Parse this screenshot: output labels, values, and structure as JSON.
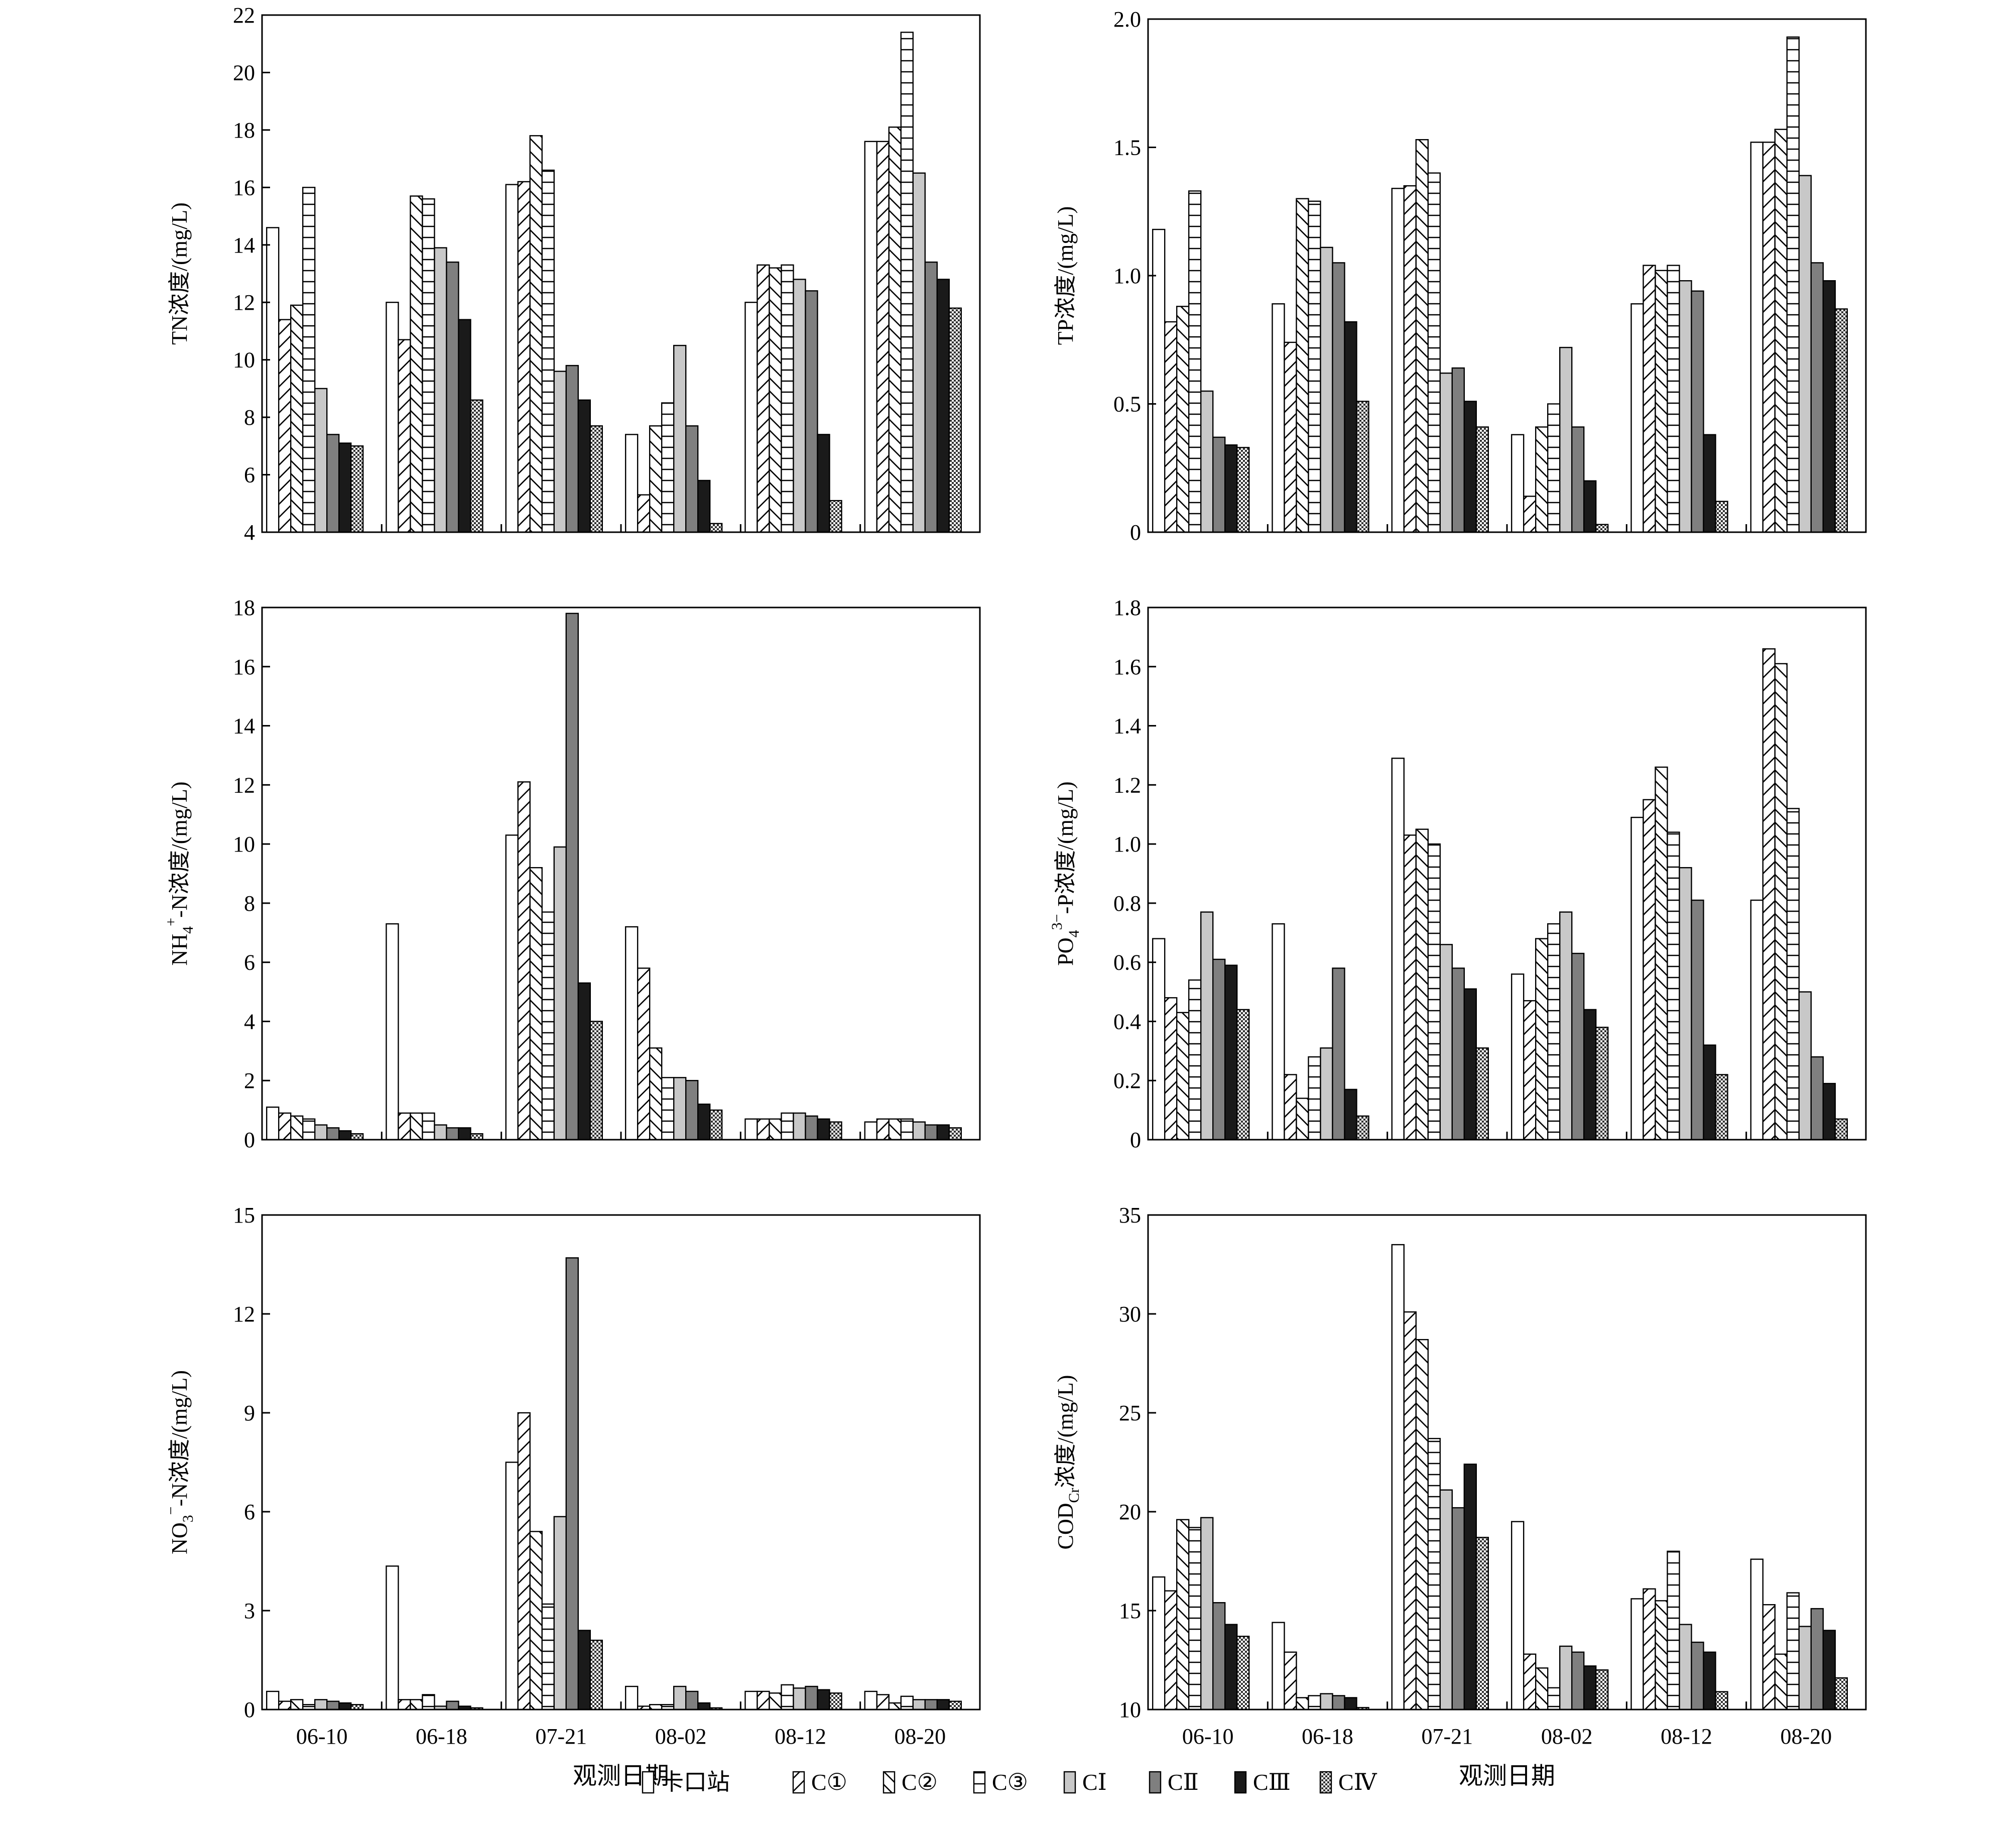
{
  "colors": {
    "ink": "#000000",
    "light_gray": "#c8c8c8",
    "mid_gray": "#7f7f7f",
    "black": "#1a1a1a"
  },
  "legend": {
    "items": [
      {
        "label": "卡口站",
        "pattern": "white"
      },
      {
        "label": "C①",
        "pattern": "diag-right"
      },
      {
        "label": "C②",
        "pattern": "diag-left"
      },
      {
        "label": "C③",
        "pattern": "horizontal"
      },
      {
        "label": "CⅠ",
        "pattern": "light-gray"
      },
      {
        "label": "CⅡ",
        "pattern": "mid-gray"
      },
      {
        "label": "CⅢ",
        "pattern": "black"
      },
      {
        "label": "CⅣ",
        "pattern": "checker"
      }
    ]
  },
  "chart_data": [
    {
      "type": "bar",
      "ylabel": "TN浓度/(mg/L)",
      "xlabel": "",
      "categories": [
        "06-10",
        "06-18",
        "07-21",
        "08-02",
        "08-12",
        "08-20"
      ],
      "ylim": [
        4,
        22
      ],
      "yticks": [
        4,
        6,
        8,
        10,
        12,
        14,
        16,
        18,
        20,
        22
      ],
      "series": [
        {
          "name": "卡口站",
          "values": [
            14.6,
            12.0,
            16.1,
            7.4,
            12.0,
            17.6
          ]
        },
        {
          "name": "C①",
          "values": [
            11.4,
            10.7,
            16.2,
            5.3,
            13.3,
            17.6
          ]
        },
        {
          "name": "C②",
          "values": [
            11.9,
            15.7,
            17.8,
            7.7,
            13.2,
            18.1
          ]
        },
        {
          "name": "C③",
          "values": [
            16.0,
            15.6,
            16.6,
            8.5,
            13.3,
            21.4
          ]
        },
        {
          "name": "CⅠ",
          "values": [
            9.0,
            13.9,
            9.6,
            10.5,
            12.8,
            16.5
          ]
        },
        {
          "name": "CⅡ",
          "values": [
            7.4,
            13.4,
            9.8,
            7.7,
            12.4,
            13.4
          ]
        },
        {
          "name": "CⅢ",
          "values": [
            7.1,
            11.4,
            8.6,
            5.8,
            7.4,
            12.8
          ]
        },
        {
          "name": "CⅣ",
          "values": [
            7.0,
            8.6,
            7.7,
            4.3,
            5.1,
            11.8
          ]
        }
      ]
    },
    {
      "type": "bar",
      "ylabel": "TP浓度/(mg/L)",
      "xlabel": "",
      "categories": [
        "06-10",
        "06-18",
        "07-21",
        "08-02",
        "08-12",
        "08-20"
      ],
      "ylim": [
        0,
        2.0
      ],
      "yticks": [
        "0",
        "0.5",
        "1.0",
        "1.5",
        "2.0"
      ],
      "series": [
        {
          "name": "卡口站",
          "values": [
            1.18,
            0.89,
            1.34,
            0.38,
            0.89,
            1.52
          ]
        },
        {
          "name": "C①",
          "values": [
            0.82,
            0.74,
            1.35,
            0.14,
            1.04,
            1.52
          ]
        },
        {
          "name": "C②",
          "values": [
            0.88,
            1.3,
            1.53,
            0.41,
            1.02,
            1.57
          ]
        },
        {
          "name": "C③",
          "values": [
            1.33,
            1.29,
            1.4,
            0.5,
            1.04,
            1.93
          ]
        },
        {
          "name": "CⅠ",
          "values": [
            0.55,
            1.11,
            0.62,
            0.72,
            0.98,
            1.39
          ]
        },
        {
          "name": "CⅡ",
          "values": [
            0.37,
            1.05,
            0.64,
            0.41,
            0.94,
            1.05
          ]
        },
        {
          "name": "CⅢ",
          "values": [
            0.34,
            0.82,
            0.51,
            0.2,
            0.38,
            0.98
          ]
        },
        {
          "name": "CⅣ",
          "values": [
            0.33,
            0.51,
            0.41,
            0.03,
            0.12,
            0.87
          ]
        }
      ]
    },
    {
      "type": "bar",
      "ylabel": "NH4+-N浓度/(mg/L)",
      "ylabel_parts": {
        "pre": "NH",
        "sub": "4",
        "sup": "+",
        "post": "-N浓度/(mg/L)"
      },
      "xlabel": "",
      "categories": [
        "06-10",
        "06-18",
        "07-21",
        "08-02",
        "08-12",
        "08-20"
      ],
      "ylim": [
        0,
        18
      ],
      "yticks": [
        0,
        2,
        4,
        6,
        8,
        10,
        12,
        14,
        16,
        18
      ],
      "series": [
        {
          "name": "卡口站",
          "values": [
            1.1,
            7.3,
            10.3,
            7.2,
            0.7,
            0.6
          ]
        },
        {
          "name": "C①",
          "values": [
            0.9,
            0.9,
            12.1,
            5.8,
            0.7,
            0.7
          ]
        },
        {
          "name": "C②",
          "values": [
            0.8,
            0.9,
            9.2,
            3.1,
            0.7,
            0.7
          ]
        },
        {
          "name": "C③",
          "values": [
            0.7,
            0.9,
            7.7,
            2.1,
            0.9,
            0.7
          ]
        },
        {
          "name": "CⅠ",
          "values": [
            0.5,
            0.5,
            9.9,
            2.1,
            0.9,
            0.6
          ]
        },
        {
          "name": "CⅡ",
          "values": [
            0.4,
            0.4,
            17.8,
            2.0,
            0.8,
            0.5
          ]
        },
        {
          "name": "CⅢ",
          "values": [
            0.3,
            0.4,
            5.3,
            1.2,
            0.7,
            0.5
          ]
        },
        {
          "name": "CⅣ",
          "values": [
            0.2,
            0.2,
            4.0,
            1.0,
            0.6,
            0.4
          ]
        }
      ]
    },
    {
      "type": "bar",
      "ylabel": "PO43−-P浓度/(mg/L)",
      "ylabel_parts": {
        "pre": "PO",
        "sub": "4",
        "sup": "3−",
        "post": "-P浓度/(mg/L)"
      },
      "xlabel": "",
      "categories": [
        "06-10",
        "06-18",
        "07-21",
        "08-02",
        "08-12",
        "08-20"
      ],
      "ylim": [
        0,
        1.8
      ],
      "yticks": [
        "0",
        "0.2",
        "0.4",
        "0.6",
        "0.8",
        "1.0",
        "1.2",
        "1.4",
        "1.6",
        "1.8"
      ],
      "series": [
        {
          "name": "卡口站",
          "values": [
            0.68,
            0.73,
            1.29,
            0.56,
            1.09,
            0.81
          ]
        },
        {
          "name": "C①",
          "values": [
            0.48,
            0.22,
            1.03,
            0.47,
            1.15,
            1.66
          ]
        },
        {
          "name": "C②",
          "values": [
            0.43,
            0.14,
            1.05,
            0.68,
            1.26,
            1.61
          ]
        },
        {
          "name": "C③",
          "values": [
            0.54,
            0.28,
            1.0,
            0.73,
            1.04,
            1.12
          ]
        },
        {
          "name": "CⅠ",
          "values": [
            0.77,
            0.31,
            0.66,
            0.77,
            0.92,
            0.5
          ]
        },
        {
          "name": "CⅡ",
          "values": [
            0.61,
            0.58,
            0.58,
            0.63,
            0.81,
            0.28
          ]
        },
        {
          "name": "CⅢ",
          "values": [
            0.59,
            0.17,
            0.51,
            0.44,
            0.32,
            0.19
          ]
        },
        {
          "name": "CⅣ",
          "values": [
            0.44,
            0.08,
            0.31,
            0.38,
            0.22,
            0.07
          ]
        }
      ]
    },
    {
      "type": "bar",
      "ylabel": "NO3−-N浓度/(mg/L)",
      "ylabel_parts": {
        "pre": "NO",
        "sub": "3",
        "sup": "−",
        "post": "-N浓度/(mg/L)"
      },
      "xlabel": "观测日期",
      "categories": [
        "06-10",
        "06-18",
        "07-21",
        "08-02",
        "08-12",
        "08-20"
      ],
      "ylim": [
        0,
        15
      ],
      "yticks": [
        0,
        3,
        6,
        9,
        12,
        15
      ],
      "series": [
        {
          "name": "卡口站",
          "values": [
            0.55,
            4.35,
            7.5,
            0.7,
            0.55,
            0.55
          ]
        },
        {
          "name": "C①",
          "values": [
            0.25,
            0.3,
            9.0,
            0.1,
            0.55,
            0.45
          ]
        },
        {
          "name": "C②",
          "values": [
            0.3,
            0.3,
            5.4,
            0.15,
            0.5,
            0.2
          ]
        },
        {
          "name": "C③",
          "values": [
            0.15,
            0.45,
            3.2,
            0.15,
            0.75,
            0.4
          ]
        },
        {
          "name": "CⅠ",
          "values": [
            0.3,
            0.1,
            5.85,
            0.7,
            0.65,
            0.3
          ]
        },
        {
          "name": "CⅡ",
          "values": [
            0.25,
            0.25,
            13.7,
            0.55,
            0.7,
            0.3
          ]
        },
        {
          "name": "CⅢ",
          "values": [
            0.2,
            0.1,
            2.4,
            0.2,
            0.6,
            0.3
          ]
        },
        {
          "name": "CⅣ",
          "values": [
            0.15,
            0.05,
            2.1,
            0.05,
            0.5,
            0.25
          ]
        }
      ]
    },
    {
      "type": "bar",
      "ylabel": "CODCr浓度/(mg/L)",
      "ylabel_parts": {
        "pre": "COD",
        "sub": "Cr",
        "sup": "",
        "post": "浓度/(mg/L)"
      },
      "xlabel": "观测日期",
      "categories": [
        "06-10",
        "06-18",
        "07-21",
        "08-02",
        "08-12",
        "08-20"
      ],
      "ylim": [
        10,
        35
      ],
      "yticks": [
        10,
        15,
        20,
        25,
        30,
        35
      ],
      "series": [
        {
          "name": "卡口站",
          "values": [
            16.7,
            14.4,
            33.5,
            19.5,
            15.6,
            17.6
          ]
        },
        {
          "name": "C①",
          "values": [
            16.0,
            12.9,
            30.1,
            12.8,
            16.1,
            15.3
          ]
        },
        {
          "name": "C②",
          "values": [
            19.6,
            10.6,
            28.7,
            12.1,
            15.5,
            12.8
          ]
        },
        {
          "name": "C③",
          "values": [
            19.2,
            10.7,
            23.7,
            11.1,
            18.0,
            15.9
          ]
        },
        {
          "name": "CⅠ",
          "values": [
            19.7,
            10.8,
            21.1,
            13.2,
            14.3,
            14.2
          ]
        },
        {
          "name": "CⅡ",
          "values": [
            15.4,
            10.7,
            20.2,
            12.9,
            13.4,
            15.1
          ]
        },
        {
          "name": "CⅢ",
          "values": [
            14.3,
            10.6,
            22.4,
            12.2,
            12.9,
            14.0
          ]
        },
        {
          "name": "CⅣ",
          "values": [
            13.7,
            10.1,
            18.7,
            12.0,
            10.9,
            11.6
          ]
        }
      ]
    }
  ]
}
